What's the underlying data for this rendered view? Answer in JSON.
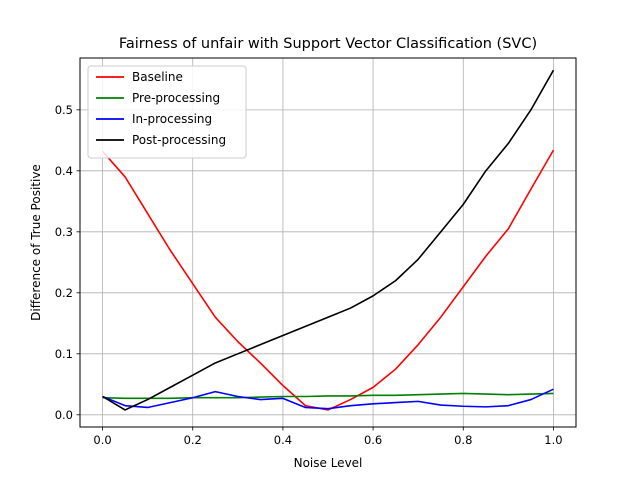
{
  "chart_data": {
    "type": "line",
    "title": "Fairness of unfair with Support Vector Classification (SVC)",
    "xlabel": "Noise Level",
    "ylabel": "Difference of True Positive",
    "xlim": [
      -0.05,
      1.05
    ],
    "ylim": [
      -0.02,
      0.585
    ],
    "xticks": [
      0.0,
      0.2,
      0.4,
      0.6,
      0.8,
      1.0
    ],
    "xtick_labels": [
      "0.0",
      "0.2",
      "0.4",
      "0.6",
      "0.8",
      "1.0"
    ],
    "yticks": [
      0.0,
      0.1,
      0.2,
      0.3,
      0.4,
      0.5
    ],
    "ytick_labels": [
      "0.0",
      "0.1",
      "0.2",
      "0.3",
      "0.4",
      "0.5"
    ],
    "grid": true,
    "legend_position": "top-left",
    "x": [
      0.0,
      0.05,
      0.1,
      0.15,
      0.2,
      0.25,
      0.3,
      0.35,
      0.4,
      0.45,
      0.5,
      0.55,
      0.6,
      0.65,
      0.7,
      0.75,
      0.8,
      0.85,
      0.9,
      0.95,
      1.0
    ],
    "series": [
      {
        "name": "Baseline",
        "color": "#ff0000",
        "values": [
          0.432,
          0.39,
          0.33,
          0.27,
          0.215,
          0.16,
          0.12,
          0.085,
          0.048,
          0.015,
          0.008,
          0.025,
          0.045,
          0.075,
          0.115,
          0.16,
          0.21,
          0.26,
          0.305,
          0.37,
          0.434
        ]
      },
      {
        "name": "Pre-processing",
        "color": "#008000",
        "values": [
          0.028,
          0.027,
          0.027,
          0.027,
          0.028,
          0.028,
          0.028,
          0.029,
          0.03,
          0.03,
          0.031,
          0.031,
          0.032,
          0.032,
          0.033,
          0.034,
          0.035,
          0.034,
          0.033,
          0.034,
          0.035
        ]
      },
      {
        "name": "In-processing",
        "color": "#0000ff",
        "values": [
          0.03,
          0.015,
          0.012,
          0.02,
          0.028,
          0.038,
          0.03,
          0.025,
          0.027,
          0.012,
          0.01,
          0.015,
          0.018,
          0.02,
          0.022,
          0.016,
          0.014,
          0.013,
          0.015,
          0.025,
          0.042
        ]
      },
      {
        "name": "Post-processing",
        "color": "#000000",
        "values": [
          0.03,
          0.008,
          0.025,
          0.045,
          0.065,
          0.085,
          0.1,
          0.115,
          0.13,
          0.145,
          0.16,
          0.175,
          0.195,
          0.22,
          0.255,
          0.3,
          0.345,
          0.4,
          0.445,
          0.5,
          0.565
        ]
      }
    ]
  }
}
